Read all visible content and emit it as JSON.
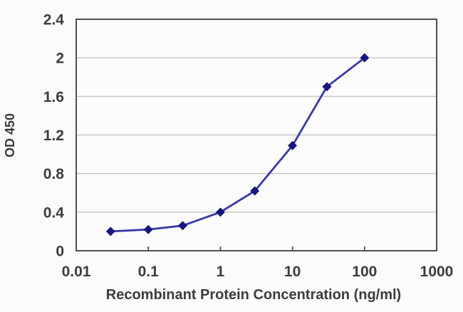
{
  "chart_data": {
    "type": "line",
    "title": "",
    "xlabel": "Recombinant Protein Concentration (ng/ml)",
    "ylabel": "OD 450",
    "x_scale": "log",
    "x": [
      0.03,
      0.1,
      0.3,
      1,
      3,
      10,
      30,
      100
    ],
    "y": [
      0.2,
      0.22,
      0.26,
      0.4,
      0.62,
      1.09,
      1.7,
      2.0
    ],
    "x_ticks": [
      0.01,
      0.1,
      1,
      10,
      100,
      1000
    ],
    "x_tick_labels": [
      "0.01",
      "0.1",
      "1",
      "10",
      "100",
      "1000"
    ],
    "y_ticks": [
      0,
      0.4,
      0.8,
      1.2,
      1.6,
      2.0,
      2.4
    ],
    "y_tick_labels": [
      "0",
      "0.4",
      "0.8",
      "1.2",
      "1.6",
      "2",
      "2.4"
    ],
    "xlim": [
      0.01,
      1000
    ],
    "ylim": [
      0,
      2.4
    ],
    "grid": "horizontal",
    "legend": "none",
    "marker_shape": "diamond",
    "colors": {
      "line": "#3838a8",
      "marker": "#17177f",
      "grid": "#8f8f8f",
      "frame": "#4f4f4f",
      "text": "#3c3c3c",
      "background": "#fbfbfb",
      "plot_fill": "#fdfdfd"
    }
  }
}
